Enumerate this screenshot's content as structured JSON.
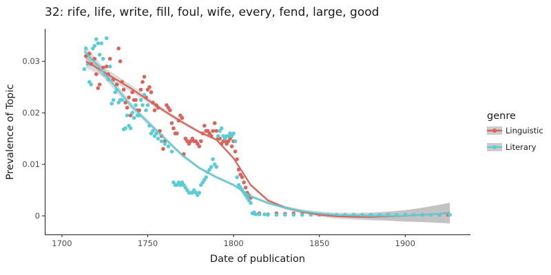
{
  "chart_data": {
    "type": "scatter",
    "title": "32: rife, life, write, fill, foul, wife, every, fend, large, good",
    "xlabel": "Date of publication",
    "ylabel": "Prevalence of Topic",
    "xlim": [
      1690,
      1938
    ],
    "ylim": [
      -0.0036,
      0.0363
    ],
    "x_ticks": [
      1700,
      1750,
      1800,
      1850,
      1900
    ],
    "x_tick_labels": [
      "1700",
      "1750",
      "1800",
      "1850",
      "1900"
    ],
    "y_ticks": [
      0,
      0.01,
      0.02,
      0.03
    ],
    "y_tick_labels": [
      "0",
      "0.01",
      "0.02",
      "0.03"
    ],
    "grid": false,
    "legend": {
      "title": "genre",
      "placement": "right"
    },
    "smoothing": "loess with grey confidence band",
    "series": [
      {
        "name": "Linguistic",
        "color": "#d9645a",
        "points": [
          [
            1714,
            0.031
          ],
          [
            1716,
            0.0315
          ],
          [
            1717,
            0.0295
          ],
          [
            1719,
            0.0305
          ],
          [
            1720,
            0.0275
          ],
          [
            1721,
            0.0248
          ],
          [
            1722,
            0.0255
          ],
          [
            1724,
            0.0288
          ],
          [
            1726,
            0.029
          ],
          [
            1727,
            0.0275
          ],
          [
            1728,
            0.0305
          ],
          [
            1730,
            0.0265
          ],
          [
            1732,
            0.0255
          ],
          [
            1733,
            0.0325
          ],
          [
            1734,
            0.03
          ],
          [
            1735,
            0.026
          ],
          [
            1736,
            0.0245
          ],
          [
            1737,
            0.022
          ],
          [
            1738,
            0.021
          ],
          [
            1739,
            0.023
          ],
          [
            1740,
            0.0195
          ],
          [
            1741,
            0.024
          ],
          [
            1742,
            0.0225
          ],
          [
            1743,
            0.0225
          ],
          [
            1744,
            0.0205
          ],
          [
            1745,
            0.0205
          ],
          [
            1746,
            0.0245
          ],
          [
            1747,
            0.026
          ],
          [
            1748,
            0.027
          ],
          [
            1749,
            0.023
          ],
          [
            1750,
            0.0245
          ],
          [
            1751,
            0.025
          ],
          [
            1752,
            0.024
          ],
          [
            1753,
            0.022
          ],
          [
            1754,
            0.0205
          ],
          [
            1755,
            0.0215
          ],
          [
            1756,
            0.021
          ],
          [
            1757,
            0.0165
          ],
          [
            1758,
            0.0155
          ],
          [
            1759,
            0.013
          ],
          [
            1760,
            0.0145
          ],
          [
            1761,
            0.0215
          ],
          [
            1762,
            0.021
          ],
          [
            1763,
            0.0205
          ],
          [
            1764,
            0.018
          ],
          [
            1765,
            0.017
          ],
          [
            1766,
            0.016
          ],
          [
            1767,
            0.016
          ],
          [
            1768,
            0.0185
          ],
          [
            1769,
            0.0195
          ],
          [
            1770,
            0.019
          ],
          [
            1771,
            0.012
          ],
          [
            1772,
            0.015
          ],
          [
            1773,
            0.0145
          ],
          [
            1774,
            0.014
          ],
          [
            1775,
            0.0145
          ],
          [
            1776,
            0.015
          ],
          [
            1777,
            0.0145
          ],
          [
            1778,
            0.0145
          ],
          [
            1779,
            0.014
          ],
          [
            1780,
            0.0135
          ],
          [
            1781,
            0.0145
          ],
          [
            1782,
            0.016
          ],
          [
            1783,
            0.0175
          ],
          [
            1784,
            0.0165
          ],
          [
            1785,
            0.0165
          ],
          [
            1786,
            0.016
          ],
          [
            1787,
            0.0155
          ],
          [
            1788,
            0.0165
          ],
          [
            1789,
            0.018
          ],
          [
            1790,
            0.0165
          ],
          [
            1791,
            0.015
          ],
          [
            1792,
            0.015
          ],
          [
            1793,
            0.014
          ],
          [
            1794,
            0.0145
          ],
          [
            1795,
            0.0145
          ],
          [
            1796,
            0.014
          ],
          [
            1797,
            0.0145
          ],
          [
            1798,
            0.015
          ],
          [
            1799,
            0.0135
          ],
          [
            1800,
            0.0145
          ],
          [
            1801,
            0.0125
          ],
          [
            1802,
            0.011
          ],
          [
            1803,
            0.009
          ],
          [
            1804,
            0.008
          ],
          [
            1805,
            0.0075
          ],
          [
            1806,
            0.0065
          ],
          [
            1807,
            0.0055
          ],
          [
            1808,
            0.0045
          ],
          [
            1809,
            0.004
          ],
          [
            1810,
            0.0035
          ],
          [
            1812,
            0.0005
          ],
          [
            1815,
            0.0005
          ],
          [
            1820,
            0.0003
          ],
          [
            1825,
            0.0005
          ],
          [
            1830,
            0.0004
          ],
          [
            1835,
            0.0005
          ],
          [
            1840,
            0.0004
          ],
          [
            1845,
            0.0003
          ],
          [
            1850,
            0.0003
          ],
          [
            1855,
            0.0002
          ],
          [
            1860,
            0.0002
          ],
          [
            1870,
            0.0002
          ],
          [
            1880,
            0.0002
          ],
          [
            1890,
            0.0002
          ],
          [
            1900,
            0.0002
          ],
          [
            1910,
            0.0002
          ],
          [
            1920,
            0.0002
          ],
          [
            1925,
            0.0002
          ]
        ],
        "trend": [
          [
            1714,
            0.03
          ],
          [
            1720,
            0.0288
          ],
          [
            1730,
            0.0268
          ],
          [
            1740,
            0.0248
          ],
          [
            1750,
            0.0225
          ],
          [
            1760,
            0.0203
          ],
          [
            1770,
            0.0182
          ],
          [
            1780,
            0.0163
          ],
          [
            1790,
            0.0148
          ],
          [
            1800,
            0.0112
          ],
          [
            1810,
            0.006
          ],
          [
            1820,
            0.003
          ],
          [
            1830,
            0.0016
          ],
          [
            1840,
            0.0008
          ],
          [
            1850,
            0.0002
          ],
          [
            1860,
            -0.0001
          ],
          [
            1870,
            -0.0002
          ],
          [
            1880,
            -0.0002
          ],
          [
            1890,
            -0.0001
          ],
          [
            1900,
            0.0
          ],
          [
            1910,
            0.0002
          ],
          [
            1920,
            0.0004
          ],
          [
            1926,
            0.0006
          ]
        ]
      },
      {
        "name": "Literary",
        "color": "#5ccdd6",
        "points": [
          [
            1713,
            0.0285
          ],
          [
            1714,
            0.0325
          ],
          [
            1715,
            0.0295
          ],
          [
            1716,
            0.026
          ],
          [
            1717,
            0.0255
          ],
          [
            1718,
            0.0325
          ],
          [
            1719,
            0.033
          ],
          [
            1720,
            0.0343
          ],
          [
            1721,
            0.0335
          ],
          [
            1722,
            0.0313
          ],
          [
            1723,
            0.0335
          ],
          [
            1724,
            0.0305
          ],
          [
            1725,
            0.0275
          ],
          [
            1726,
            0.0345
          ],
          [
            1727,
            0.0265
          ],
          [
            1728,
            0.029
          ],
          [
            1729,
            0.0218
          ],
          [
            1730,
            0.0225
          ],
          [
            1731,
            0.024
          ],
          [
            1732,
            0.0245
          ],
          [
            1733,
            0.022
          ],
          [
            1734,
            0.0225
          ],
          [
            1735,
            0.0225
          ],
          [
            1736,
            0.0168
          ],
          [
            1737,
            0.017
          ],
          [
            1738,
            0.0195
          ],
          [
            1739,
            0.0175
          ],
          [
            1740,
            0.017
          ],
          [
            1741,
            0.02
          ],
          [
            1742,
            0.019
          ],
          [
            1743,
            0.0215
          ],
          [
            1744,
            0.0195
          ],
          [
            1745,
            0.0195
          ],
          [
            1746,
            0.0225
          ],
          [
            1747,
            0.0215
          ],
          [
            1748,
            0.0235
          ],
          [
            1749,
            0.0205
          ],
          [
            1750,
            0.0215
          ],
          [
            1751,
            0.0175
          ],
          [
            1752,
            0.016
          ],
          [
            1753,
            0.0165
          ],
          [
            1754,
            0.0155
          ],
          [
            1755,
            0.016
          ],
          [
            1756,
            0.015
          ],
          [
            1758,
            0.0145
          ],
          [
            1760,
            0.014
          ],
          [
            1762,
            0.0135
          ],
          [
            1764,
            0.0125
          ],
          [
            1765,
            0.0065
          ],
          [
            1766,
            0.006
          ],
          [
            1767,
            0.006
          ],
          [
            1768,
            0.0065
          ],
          [
            1769,
            0.006
          ],
          [
            1770,
            0.0065
          ],
          [
            1771,
            0.006
          ],
          [
            1772,
            0.0055
          ],
          [
            1773,
            0.005
          ],
          [
            1774,
            0.0045
          ],
          [
            1775,
            0.0045
          ],
          [
            1776,
            0.0045
          ],
          [
            1777,
            0.005
          ],
          [
            1778,
            0.0045
          ],
          [
            1779,
            0.004
          ],
          [
            1780,
            0.0045
          ],
          [
            1781,
            0.006
          ],
          [
            1782,
            0.0065
          ],
          [
            1783,
            0.007
          ],
          [
            1784,
            0.0075
          ],
          [
            1785,
            0.0085
          ],
          [
            1786,
            0.009
          ],
          [
            1787,
            0.0095
          ],
          [
            1788,
            0.011
          ],
          [
            1789,
            0.01
          ],
          [
            1790,
            0.0095
          ],
          [
            1791,
            0.0155
          ],
          [
            1792,
            0.0165
          ],
          [
            1793,
            0.017
          ],
          [
            1794,
            0.0155
          ],
          [
            1795,
            0.015
          ],
          [
            1796,
            0.0155
          ],
          [
            1797,
            0.0155
          ],
          [
            1798,
            0.016
          ],
          [
            1799,
            0.0155
          ],
          [
            1800,
            0.016
          ],
          [
            1801,
            0.0145
          ],
          [
            1802,
            0.0075
          ],
          [
            1803,
            0.006
          ],
          [
            1804,
            0.0055
          ],
          [
            1805,
            0.005
          ],
          [
            1806,
            0.0045
          ],
          [
            1807,
            0.004
          ],
          [
            1808,
            0.0035
          ],
          [
            1809,
            0.003
          ],
          [
            1810,
            0.0025
          ],
          [
            1811,
            0.0005
          ],
          [
            1812,
            0.0007
          ],
          [
            1813,
            0.0003
          ],
          [
            1815,
            0.0003
          ],
          [
            1818,
            0.0003
          ],
          [
            1820,
            0.0002
          ],
          [
            1825,
            0.0002
          ],
          [
            1830,
            0.0002
          ],
          [
            1835,
            0.0002
          ],
          [
            1840,
            0.0002
          ],
          [
            1845,
            0.0002
          ],
          [
            1850,
            0.0002
          ],
          [
            1855,
            0.0002
          ],
          [
            1860,
            0.0002
          ],
          [
            1865,
            0.0002
          ],
          [
            1870,
            0.0002
          ],
          [
            1875,
            0.0002
          ],
          [
            1880,
            0.0002
          ],
          [
            1885,
            0.0002
          ],
          [
            1890,
            0.0002
          ],
          [
            1895,
            0.0002
          ],
          [
            1900,
            0.0002
          ],
          [
            1905,
            0.0002
          ],
          [
            1910,
            0.0002
          ],
          [
            1915,
            0.0002
          ],
          [
            1920,
            0.0002
          ],
          [
            1926,
            0.0002
          ]
        ],
        "trend": [
          [
            1713,
            0.032
          ],
          [
            1720,
            0.0295
          ],
          [
            1730,
            0.0255
          ],
          [
            1740,
            0.0215
          ],
          [
            1750,
            0.0182
          ],
          [
            1760,
            0.015
          ],
          [
            1770,
            0.0118
          ],
          [
            1780,
            0.0093
          ],
          [
            1790,
            0.0075
          ],
          [
            1800,
            0.006
          ],
          [
            1810,
            0.0038
          ],
          [
            1820,
            0.0025
          ],
          [
            1830,
            0.0016
          ],
          [
            1840,
            0.0009
          ],
          [
            1850,
            0.0005
          ],
          [
            1860,
            0.0002
          ],
          [
            1870,
            0.0001
          ],
          [
            1880,
            0.0
          ],
          [
            1890,
            0.0
          ],
          [
            1900,
            0.0
          ],
          [
            1910,
            0.0002
          ],
          [
            1920,
            0.0004
          ],
          [
            1926,
            0.0005
          ]
        ]
      }
    ]
  }
}
